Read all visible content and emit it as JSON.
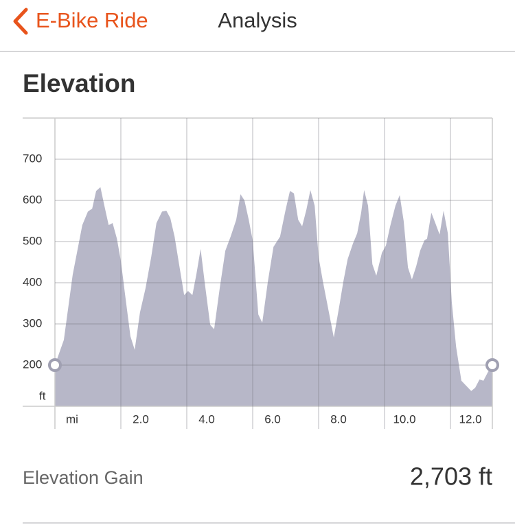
{
  "header": {
    "back": "E-Bike Ride",
    "title": "Analysis"
  },
  "section_title": "Elevation",
  "chart_data": {
    "type": "area",
    "x_label": "mi",
    "y_label": "ft",
    "x": [
      0,
      0.27,
      0.54,
      0.83,
      1.0,
      1.13,
      1.25,
      1.38,
      1.5,
      1.63,
      1.75,
      1.88,
      2.0,
      2.13,
      2.29,
      2.42,
      2.58,
      2.75,
      2.92,
      3.08,
      3.25,
      3.38,
      3.5,
      3.63,
      3.75,
      3.92,
      4.04,
      4.17,
      4.29,
      4.42,
      4.54,
      4.71,
      4.83,
      5.0,
      5.17,
      5.33,
      5.5,
      5.63,
      5.75,
      5.88,
      6.0,
      6.17,
      6.29,
      6.46,
      6.63,
      6.83,
      7.0,
      7.13,
      7.25,
      7.38,
      7.5,
      7.63,
      7.75,
      7.88,
      8.0,
      8.13,
      8.29,
      8.46,
      8.63,
      8.75,
      8.88,
      9.04,
      9.17,
      9.29,
      9.38,
      9.5,
      9.63,
      9.75,
      9.92,
      10.04,
      10.17,
      10.33,
      10.46,
      10.58,
      10.71,
      10.83,
      10.96,
      11.08,
      11.21,
      11.29,
      11.42,
      11.54,
      11.67,
      11.79,
      11.92,
      12.04,
      12.17,
      12.33,
      12.5,
      12.63,
      12.75,
      12.88,
      13.0,
      13.13,
      13.27
    ],
    "values": [
      200,
      261,
      420,
      540,
      573,
      580,
      623,
      632,
      587,
      540,
      545,
      507,
      453,
      370,
      270,
      237,
      328,
      387,
      462,
      545,
      573,
      575,
      557,
      512,
      453,
      370,
      380,
      370,
      420,
      482,
      403,
      298,
      287,
      387,
      478,
      512,
      553,
      615,
      600,
      553,
      503,
      323,
      303,
      403,
      487,
      512,
      578,
      623,
      617,
      553,
      537,
      578,
      625,
      587,
      462,
      403,
      337,
      267,
      345,
      403,
      457,
      495,
      520,
      570,
      625,
      587,
      445,
      417,
      473,
      490,
      537,
      587,
      613,
      550,
      437,
      408,
      440,
      478,
      503,
      507,
      570,
      545,
      517,
      575,
      520,
      353,
      245,
      162,
      148,
      137,
      145,
      165,
      162,
      182,
      200
    ],
    "color": "#b7b7c8",
    "xlim": [
      0,
      13.27
    ],
    "ylim": [
      100,
      800
    ],
    "xticks": [
      {
        "value": 2,
        "label": "2.0"
      },
      {
        "value": 4,
        "label": "4.0"
      },
      {
        "value": 6,
        "label": "6.0"
      },
      {
        "value": 8,
        "label": "8.0"
      },
      {
        "value": 10,
        "label": "10.0"
      },
      {
        "value": 12,
        "label": "12.0"
      }
    ],
    "yticks": [
      200,
      300,
      400,
      500,
      600,
      700
    ],
    "grid": true
  },
  "stats": [
    {
      "label": "Elevation Gain",
      "value": "2,703 ft"
    }
  ]
}
